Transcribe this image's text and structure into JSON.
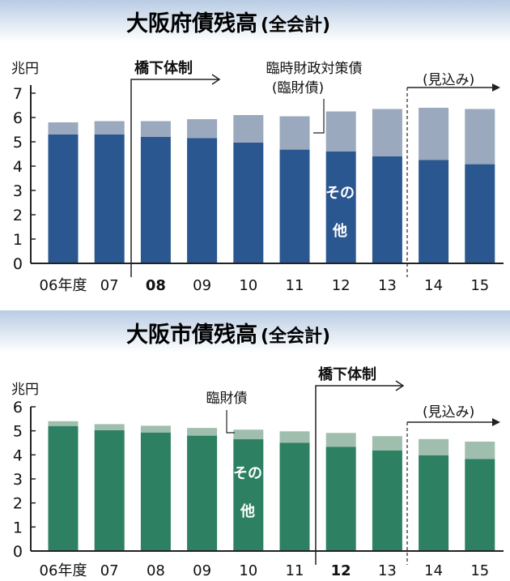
{
  "colors": {
    "prefecture_other": "#2b5790",
    "prefecture_special": "#9aa9bd",
    "city_other": "#2e8063",
    "city_special": "#9fbeae",
    "header_band": "#dde6f2",
    "axis": "#222222"
  },
  "chart_data": [
    {
      "type": "bar",
      "stacked": true,
      "title": "大阪府債残高",
      "title_suffix": "(全会計)",
      "unit_label": "兆円",
      "ylim": [
        0,
        7
      ],
      "yticks": [
        "0",
        "1",
        "2",
        "3",
        "4",
        "5",
        "6",
        "7"
      ],
      "categories": [
        "06年度",
        "07",
        "08",
        "09",
        "10",
        "11",
        "12",
        "13",
        "14",
        "15"
      ],
      "bold_category": "08",
      "series": [
        {
          "name": "その他",
          "values": [
            5.3,
            5.3,
            5.2,
            5.15,
            4.97,
            4.68,
            4.6,
            4.4,
            4.25,
            4.08
          ]
        },
        {
          "name": "臨時財政対策債(臨財債)",
          "values": [
            0.5,
            0.55,
            0.65,
            0.78,
            1.13,
            1.37,
            1.65,
            1.95,
            2.15,
            2.27
          ]
        }
      ],
      "annotations": {
        "regime": "橋下体制",
        "series_label_line1": "臨時財政対策債",
        "series_label_line2": "(臨財債)",
        "inbar_label_1": "その",
        "inbar_label_2": "他",
        "forecast": "(見込み)"
      }
    },
    {
      "type": "bar",
      "stacked": true,
      "title": "大阪市債残高",
      "title_suffix": "(全会計)",
      "unit_label": "兆円",
      "ylim": [
        0,
        6
      ],
      "yticks": [
        "0",
        "1",
        "2",
        "3",
        "4",
        "5",
        "6"
      ],
      "categories": [
        "06年度",
        "07",
        "08",
        "09",
        "10",
        "11",
        "12",
        "13",
        "14",
        "15"
      ],
      "bold_category": "12",
      "series": [
        {
          "name": "その他",
          "values": [
            5.2,
            5.03,
            4.93,
            4.8,
            4.65,
            4.5,
            4.33,
            4.18,
            3.98,
            3.83
          ]
        },
        {
          "name": "臨財債",
          "values": [
            0.2,
            0.25,
            0.28,
            0.32,
            0.4,
            0.48,
            0.58,
            0.6,
            0.68,
            0.72
          ]
        }
      ],
      "annotations": {
        "regime": "橋下体制",
        "series_label_line1": "臨財債",
        "inbar_label_1": "その",
        "inbar_label_2": "他",
        "forecast": "(見込み)"
      }
    }
  ]
}
